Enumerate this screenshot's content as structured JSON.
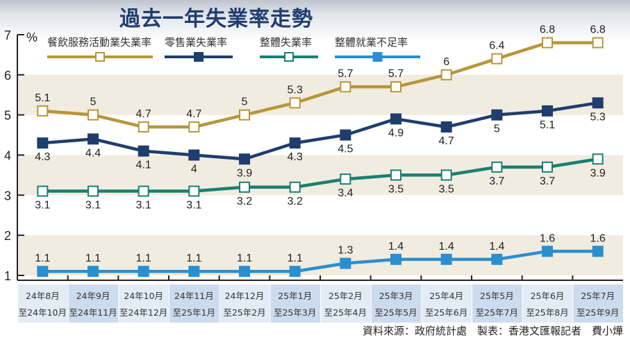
{
  "title": "過去一年失業率走勢",
  "source": "資料來源：政府統計處　製表：香港文匯報記者　費小燁",
  "chart_data": {
    "type": "line",
    "title": "過去一年失業率走勢",
    "ylabel": "%",
    "ylim": [
      1,
      7
    ],
    "yticks": [
      "1",
      "2",
      "3",
      "4",
      "5",
      "6",
      "7"
    ],
    "categories": [
      [
        "24年8月",
        "至24年10月"
      ],
      [
        "24年9月",
        "至24年11月"
      ],
      [
        "24年10月",
        "至24年12月"
      ],
      [
        "24年11月",
        "至25年1月"
      ],
      [
        "24年12月",
        "至25年2月"
      ],
      [
        "25年1月",
        "至25年3月"
      ],
      [
        "25年2月",
        "至25年4月"
      ],
      [
        "25年3月",
        "至25年5月"
      ],
      [
        "25年4月",
        "至25年6月"
      ],
      [
        "25年5月",
        "至25年7月"
      ],
      [
        "25年6月",
        "至25年8月"
      ],
      [
        "25年7月",
        "至25年9月"
      ]
    ],
    "series": [
      {
        "name": "餐飲服務活動業失業率",
        "color": "#b8963a",
        "marker": "hollow",
        "label_pos": "above",
        "values": [
          5.1,
          5,
          4.7,
          4.7,
          5,
          5.3,
          5.7,
          5.7,
          6,
          6.4,
          6.8,
          6.8
        ],
        "labels": [
          "5.1",
          "5",
          "4.7",
          "4.7",
          "5",
          "5.3",
          "5.7",
          "5.7",
          "6",
          "6.4",
          "6.8",
          "6.8"
        ]
      },
      {
        "name": "零售業失業率",
        "color": "#1f3d6e",
        "marker": "filled",
        "label_pos": "below",
        "values": [
          4.3,
          4.4,
          4.1,
          4,
          3.9,
          4.3,
          4.5,
          4.9,
          4.7,
          5,
          5.1,
          5.3
        ],
        "labels": [
          "4.3",
          "4.4",
          "4.1",
          "4",
          "3.9",
          "4.3",
          "4.5",
          "4.9",
          "4.7",
          "5",
          "5.1",
          "5.3"
        ]
      },
      {
        "name": "整體失業率",
        "color": "#1a7f72",
        "marker": "hollow",
        "label_pos": "below",
        "values": [
          3.1,
          3.1,
          3.1,
          3.1,
          3.2,
          3.2,
          3.4,
          3.5,
          3.5,
          3.7,
          3.7,
          3.9
        ],
        "labels": [
          "3.1",
          "3.1",
          "3.1",
          "3.1",
          "3.2",
          "3.2",
          "3.4",
          "3.5",
          "3.5",
          "3.7",
          "3.7",
          "3.9"
        ]
      },
      {
        "name": "整體就業不足率",
        "color": "#2a8fd0",
        "marker": "filled",
        "label_pos": "above",
        "values": [
          1.1,
          1.1,
          1.1,
          1.1,
          1.1,
          1.1,
          1.3,
          1.4,
          1.4,
          1.4,
          1.6,
          1.6
        ],
        "labels": [
          "1.1",
          "1.1",
          "1.1",
          "1.1",
          "1.1",
          "1.1",
          "1.3",
          "1.4",
          "1.4",
          "1.4",
          "1.6",
          "1.6"
        ]
      }
    ],
    "bands_color": "#f1ece0",
    "legend": "top"
  }
}
